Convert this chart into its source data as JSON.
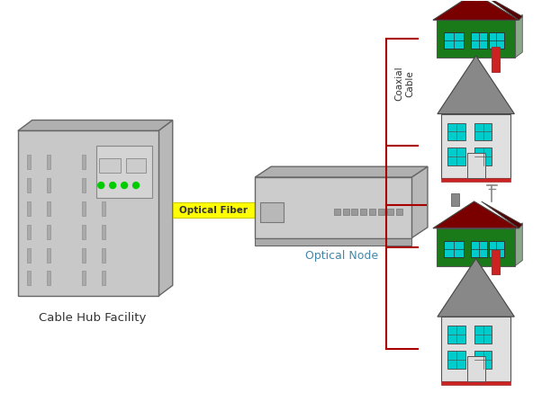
{
  "background_color": "#ffffff",
  "cable_hub_label": "Cable Hub Facility",
  "optical_fiber_label": "Optical Fiber",
  "optical_node_label": "Optical Node",
  "coaxial_cable_label": "Coaxial\nCable",
  "colors": {
    "server_body": "#c8c8c8",
    "server_top": "#b0b0b0",
    "server_right": "#b8b8b8",
    "server_panel": "#d4d4d4",
    "green_light": "#00cc00",
    "yellow_fiber": "#ffff00",
    "node_body": "#cccccc",
    "node_top": "#b0b0b0",
    "node_right": "#b8b8b8",
    "node_base": "#aaaaaa",
    "coaxial_line": "#aa0000",
    "house1_roof": "#7a0000",
    "house1_wall": "#1a7a1a",
    "house2_roof": "#888888",
    "house2_wall": "#e0e0e0",
    "window_cyan": "#00cccc",
    "door_white": "#ffffff",
    "chimney_red": "#cc2222",
    "slot_color": "#b0b0b0",
    "slot_edge": "#999999"
  }
}
